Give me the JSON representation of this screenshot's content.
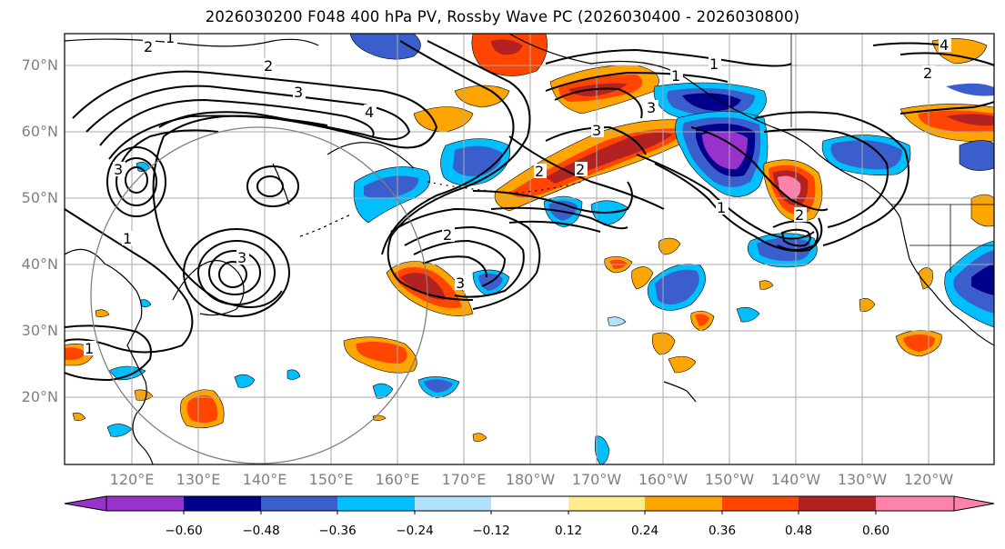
{
  "title": "2026030200 F048 400 hPa PV, Rossby Wave PC (2026030400 - 2026030800)",
  "map": {
    "latitude_labels": [
      "70°N",
      "60°N",
      "50°N",
      "40°N",
      "30°N",
      "20°N"
    ],
    "longitude_labels": [
      "120°E",
      "130°E",
      "140°E",
      "150°E",
      "160°E",
      "170°E",
      "180°W",
      "170°W",
      "160°W",
      "150°W",
      "140°W",
      "130°W",
      "120°W"
    ],
    "contour_labels": [
      "1",
      "2",
      "3",
      "4"
    ]
  },
  "colorbar": {
    "tick_labels": [
      "−0.60",
      "−0.48",
      "−0.36",
      "−0.24",
      "−0.12",
      "0.12",
      "0.24",
      "0.36",
      "0.48",
      "0.60"
    ],
    "colors": [
      "#9932CC",
      "#00008B",
      "#3A5FCD",
      "#00BFFF",
      "#B0E2FF",
      "#FFFFFF",
      "#FFEC8B",
      "#FFA500",
      "#FF4500",
      "#B22222",
      "#FF82AB"
    ]
  },
  "colors": {
    "neg_strong": "#9932CC",
    "neg_dark": "#00008B",
    "neg_mid": "#3A5FCD",
    "neg_light": "#00BFFF",
    "neg_pale": "#B0E2FF",
    "pos_pale": "#FFEC8B",
    "pos_light": "#FFA500",
    "pos_mid": "#FF4500",
    "pos_dark": "#B22222",
    "pos_strong": "#FF82AB"
  }
}
